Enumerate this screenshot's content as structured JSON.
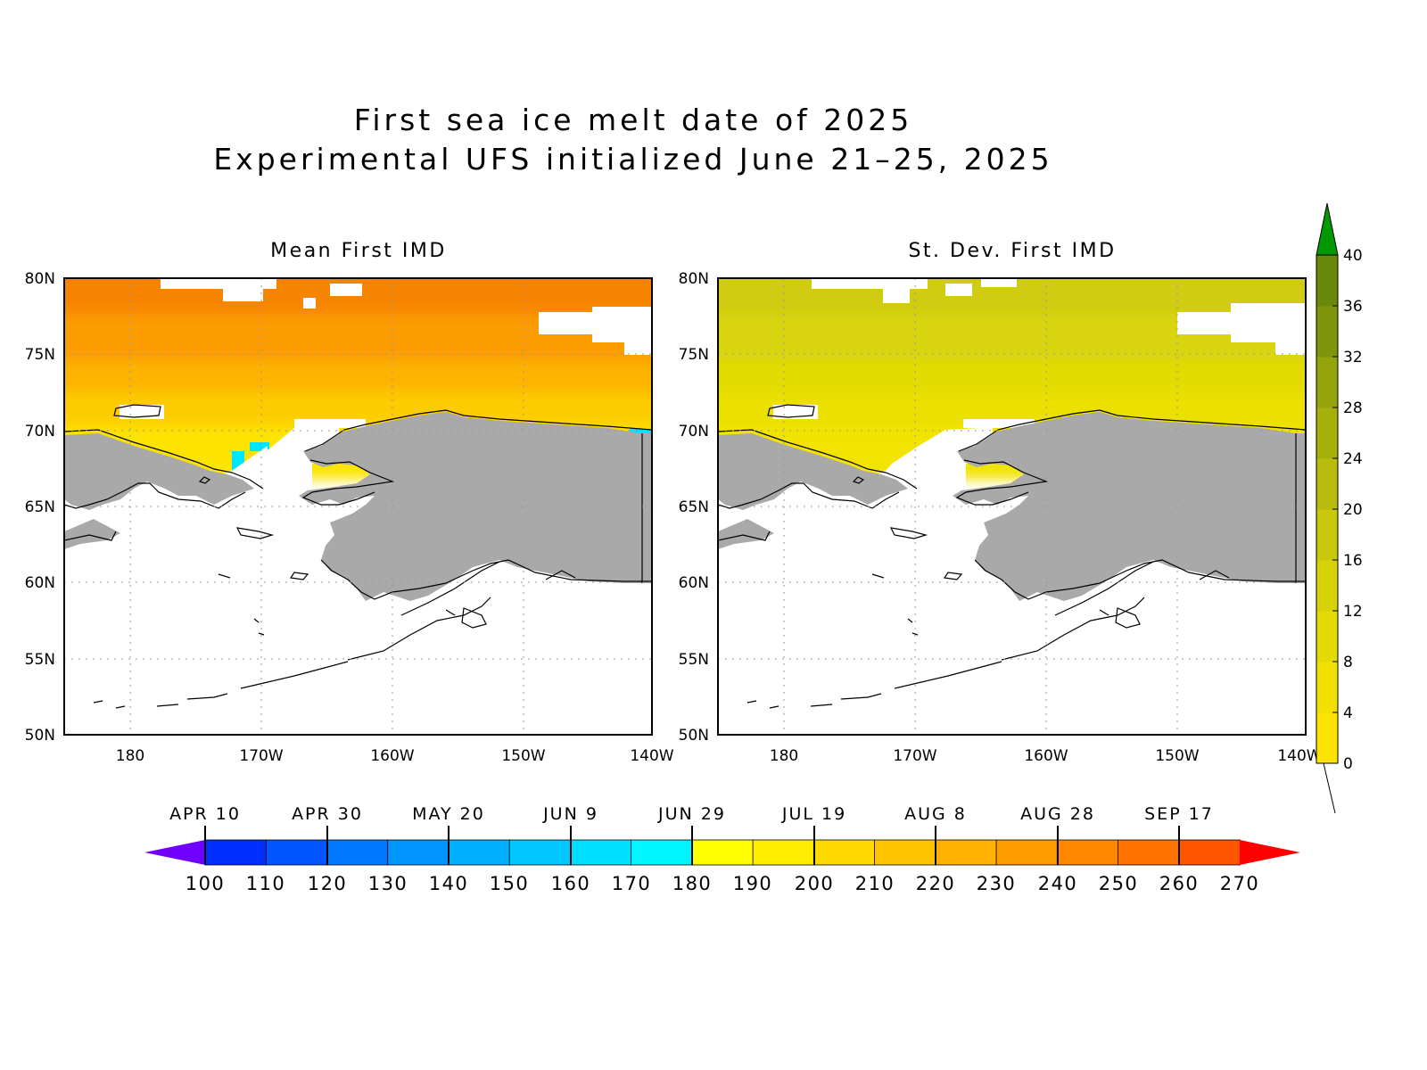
{
  "figure": {
    "title_line1": "First sea ice melt date of 2025",
    "title_line2": "Experimental UFS initialized June 21–25, 2025"
  },
  "panels": [
    {
      "title": "Mean First IMD",
      "lat_ticks": [
        "80N",
        "75N",
        "70N",
        "65N",
        "60N",
        "55N",
        "50N"
      ],
      "lon_ticks": [
        "180",
        "170W",
        "160W",
        "150W",
        "140W"
      ],
      "ocean_colors": [
        "#f78400",
        "#fb9c00",
        "#fdb400",
        "#fdcc00",
        "#fce400"
      ],
      "anomaly_color": "#00e5ff"
    },
    {
      "title": "St. Dev. First IMD",
      "lat_ticks": [
        "80N",
        "75N",
        "70N",
        "65N",
        "60N",
        "55N",
        "50N"
      ],
      "lon_ticks": [
        "180",
        "170W",
        "160W",
        "150W",
        "140W"
      ],
      "ocean_colors": [
        "#cfcc12",
        "#d8d40a",
        "#e2dc04",
        "#ebe000",
        "#f2e300"
      ]
    }
  ],
  "horizontal_colorbar": {
    "values": [
      "100",
      "110",
      "120",
      "130",
      "140",
      "150",
      "160",
      "170",
      "180",
      "190",
      "200",
      "210",
      "220",
      "230",
      "240",
      "250",
      "260",
      "270"
    ],
    "dates": [
      "APR 10",
      "APR 30",
      "MAY 20",
      "JUN 9",
      "JUN 29",
      "JUL 19",
      "AUG 8",
      "AUG 28",
      "SEP 17"
    ],
    "colors": [
      "#0030ff",
      "#0055ff",
      "#0078ff",
      "#0095ff",
      "#00b0ff",
      "#00c8ff",
      "#00deff",
      "#00f5ff",
      "#ffff00",
      "#ffec00",
      "#ffd800",
      "#ffc400",
      "#ffb100",
      "#ff9c00",
      "#ff8800",
      "#ff7100",
      "#ff5400"
    ],
    "under_color": "#7000ff",
    "over_color": "#ff0000"
  },
  "vertical_colorbar": {
    "values": [
      "0",
      "4",
      "8",
      "12",
      "16",
      "20",
      "24",
      "28",
      "32",
      "36",
      "40"
    ],
    "colors": [
      "#fce400",
      "#f1e001",
      "#e4da04",
      "#d7d107",
      "#c9c80a",
      "#b9bc0c",
      "#a6b00d",
      "#93a40d",
      "#7e960c",
      "#6a880a"
    ],
    "over_color": "#009a00"
  },
  "colors": {
    "land": "#a9a9a9",
    "coast": "#000000",
    "background": "#ffffff"
  }
}
